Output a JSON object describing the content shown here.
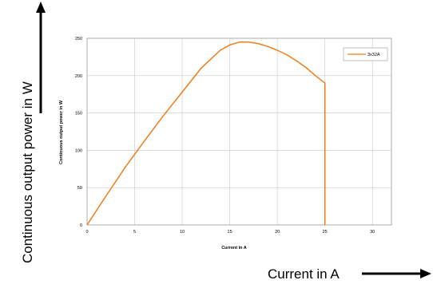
{
  "outer": {
    "y_label": "Continuous output power in W",
    "x_label": "Current in A"
  },
  "colors": {
    "series": "#f07d1a",
    "grid": "#c8c8c8",
    "frame": "#9a9a9a",
    "arrow": "#000000"
  },
  "chart_data": {
    "type": "line",
    "title": "",
    "xlabel": "Current in A",
    "ylabel": "Continuous output power in W",
    "xlim": [
      0,
      32
    ],
    "ylim": [
      0,
      250
    ],
    "xticks": [
      0,
      5,
      10,
      15,
      20,
      25,
      30
    ],
    "yticks": [
      0,
      50,
      100,
      150,
      200,
      250
    ],
    "grid": true,
    "legend": "top-right",
    "series": [
      {
        "name": "3x32A",
        "color": "#f07d1a",
        "x": [
          0,
          2,
          4,
          6,
          8,
          10,
          12,
          14,
          15,
          16,
          17,
          18,
          19,
          20,
          21,
          22,
          23,
          24,
          25,
          25,
          25
        ],
        "y": [
          0,
          39,
          77,
          112,
          146,
          178,
          210,
          234,
          241,
          245,
          245,
          243,
          239,
          234,
          228,
          220,
          211,
          200,
          190,
          100,
          0
        ]
      }
    ]
  }
}
